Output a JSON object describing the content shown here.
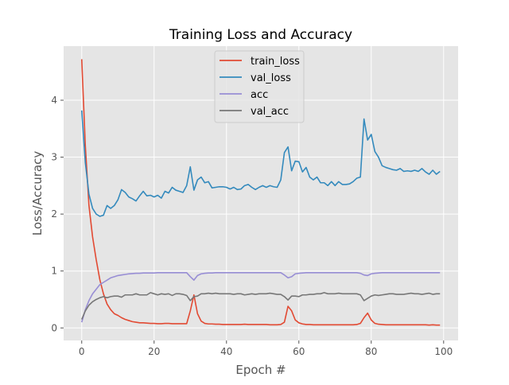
{
  "chart_data": {
    "type": "line",
    "title": "Training Loss and Accuracy",
    "xlabel": "Epoch #",
    "ylabel": "Loss/Accuracy",
    "xlim": [
      -5,
      104
    ],
    "ylim": [
      -0.22,
      4.95
    ],
    "xticks": [
      0,
      20,
      40,
      60,
      80,
      100
    ],
    "yticks": [
      0,
      1,
      2,
      3,
      4
    ],
    "grid": true,
    "legend_position": "top-center",
    "style": "ggplot",
    "series": [
      {
        "name": "train_loss",
        "color": "#E24A33",
        "x": [
          0,
          1,
          2,
          3,
          4,
          5,
          6,
          7,
          8,
          9,
          10,
          11,
          12,
          13,
          14,
          15,
          16,
          17,
          18,
          19,
          20,
          21,
          22,
          23,
          24,
          25,
          26,
          27,
          28,
          29,
          30,
          31,
          32,
          33,
          34,
          35,
          36,
          37,
          38,
          39,
          40,
          41,
          42,
          43,
          44,
          45,
          46,
          47,
          48,
          49,
          50,
          51,
          52,
          53,
          54,
          55,
          56,
          57,
          58,
          59,
          60,
          61,
          62,
          63,
          64,
          65,
          66,
          67,
          68,
          69,
          70,
          71,
          72,
          73,
          74,
          75,
          76,
          77,
          78,
          79,
          80,
          81,
          82,
          83,
          84,
          85,
          86,
          87,
          88,
          89,
          90,
          91,
          92,
          93,
          94,
          95,
          96,
          97,
          98,
          99
        ],
        "values": [
          4.72,
          3.2,
          2.15,
          1.6,
          1.2,
          0.85,
          0.6,
          0.42,
          0.32,
          0.25,
          0.22,
          0.18,
          0.15,
          0.13,
          0.11,
          0.1,
          0.09,
          0.09,
          0.085,
          0.08,
          0.08,
          0.075,
          0.075,
          0.08,
          0.08,
          0.075,
          0.075,
          0.075,
          0.075,
          0.075,
          0.3,
          0.58,
          0.25,
          0.12,
          0.08,
          0.07,
          0.07,
          0.065,
          0.065,
          0.06,
          0.06,
          0.06,
          0.06,
          0.06,
          0.06,
          0.065,
          0.06,
          0.06,
          0.06,
          0.06,
          0.06,
          0.06,
          0.055,
          0.055,
          0.055,
          0.06,
          0.1,
          0.38,
          0.3,
          0.14,
          0.09,
          0.07,
          0.06,
          0.06,
          0.055,
          0.055,
          0.055,
          0.055,
          0.055,
          0.055,
          0.055,
          0.055,
          0.055,
          0.055,
          0.055,
          0.055,
          0.06,
          0.08,
          0.18,
          0.26,
          0.14,
          0.08,
          0.065,
          0.06,
          0.055,
          0.055,
          0.055,
          0.055,
          0.055,
          0.055,
          0.055,
          0.055,
          0.055,
          0.055,
          0.055,
          0.055,
          0.05,
          0.055,
          0.05,
          0.05
        ]
      },
      {
        "name": "val_loss",
        "color": "#348ABD",
        "x": [
          0,
          1,
          2,
          3,
          4,
          5,
          6,
          7,
          8,
          9,
          10,
          11,
          12,
          13,
          14,
          15,
          16,
          17,
          18,
          19,
          20,
          21,
          22,
          23,
          24,
          25,
          26,
          27,
          28,
          29,
          30,
          31,
          32,
          33,
          34,
          35,
          36,
          37,
          38,
          39,
          40,
          41,
          42,
          43,
          44,
          45,
          46,
          47,
          48,
          49,
          50,
          51,
          52,
          53,
          54,
          55,
          56,
          57,
          58,
          59,
          60,
          61,
          62,
          63,
          64,
          65,
          66,
          67,
          68,
          69,
          70,
          71,
          72,
          73,
          74,
          75,
          76,
          77,
          78,
          79,
          80,
          81,
          82,
          83,
          84,
          85,
          86,
          87,
          88,
          89,
          90,
          91,
          92,
          93,
          94,
          95,
          96,
          97,
          98,
          99
        ],
        "values": [
          3.82,
          2.9,
          2.35,
          2.1,
          2.0,
          1.96,
          1.98,
          2.15,
          2.1,
          2.15,
          2.25,
          2.43,
          2.38,
          2.3,
          2.27,
          2.23,
          2.32,
          2.4,
          2.32,
          2.33,
          2.3,
          2.33,
          2.28,
          2.4,
          2.37,
          2.47,
          2.42,
          2.4,
          2.38,
          2.5,
          2.83,
          2.42,
          2.6,
          2.65,
          2.55,
          2.57,
          2.46,
          2.47,
          2.48,
          2.48,
          2.47,
          2.44,
          2.47,
          2.43,
          2.44,
          2.5,
          2.52,
          2.47,
          2.43,
          2.47,
          2.5,
          2.47,
          2.5,
          2.48,
          2.47,
          2.6,
          3.08,
          3.18,
          2.76,
          2.93,
          2.92,
          2.74,
          2.82,
          2.65,
          2.6,
          2.65,
          2.55,
          2.55,
          2.5,
          2.57,
          2.5,
          2.57,
          2.52,
          2.52,
          2.53,
          2.57,
          2.63,
          2.65,
          3.67,
          3.3,
          3.4,
          3.1,
          3.0,
          2.85,
          2.82,
          2.8,
          2.78,
          2.77,
          2.8,
          2.75,
          2.76,
          2.75,
          2.77,
          2.75,
          2.8,
          2.74,
          2.7,
          2.77,
          2.7,
          2.75
        ]
      },
      {
        "name": "acc",
        "color": "#988ED5",
        "x": [
          0,
          1,
          2,
          3,
          4,
          5,
          6,
          7,
          8,
          9,
          10,
          11,
          12,
          13,
          14,
          15,
          16,
          17,
          18,
          19,
          20,
          21,
          22,
          23,
          24,
          25,
          26,
          27,
          28,
          29,
          30,
          31,
          32,
          33,
          34,
          35,
          36,
          37,
          38,
          39,
          40,
          41,
          42,
          43,
          44,
          45,
          46,
          47,
          48,
          49,
          50,
          51,
          52,
          53,
          54,
          55,
          56,
          57,
          58,
          59,
          60,
          61,
          62,
          63,
          64,
          65,
          66,
          67,
          68,
          69,
          70,
          71,
          72,
          73,
          74,
          75,
          76,
          77,
          78,
          79,
          80,
          81,
          82,
          83,
          84,
          85,
          86,
          87,
          88,
          89,
          90,
          91,
          92,
          93,
          94,
          95,
          96,
          97,
          98,
          99
        ],
        "values": [
          0.1,
          0.32,
          0.48,
          0.6,
          0.68,
          0.76,
          0.8,
          0.84,
          0.88,
          0.9,
          0.92,
          0.93,
          0.94,
          0.95,
          0.955,
          0.96,
          0.96,
          0.965,
          0.965,
          0.965,
          0.965,
          0.97,
          0.97,
          0.97,
          0.97,
          0.97,
          0.97,
          0.97,
          0.97,
          0.97,
          0.9,
          0.84,
          0.92,
          0.95,
          0.96,
          0.965,
          0.965,
          0.97,
          0.97,
          0.97,
          0.97,
          0.97,
          0.97,
          0.97,
          0.97,
          0.97,
          0.97,
          0.97,
          0.97,
          0.97,
          0.97,
          0.97,
          0.97,
          0.97,
          0.97,
          0.97,
          0.93,
          0.88,
          0.9,
          0.95,
          0.96,
          0.965,
          0.97,
          0.97,
          0.97,
          0.97,
          0.97,
          0.97,
          0.97,
          0.97,
          0.97,
          0.97,
          0.97,
          0.97,
          0.97,
          0.97,
          0.97,
          0.96,
          0.93,
          0.92,
          0.95,
          0.96,
          0.965,
          0.97,
          0.97,
          0.97,
          0.97,
          0.97,
          0.97,
          0.97,
          0.97,
          0.97,
          0.97,
          0.97,
          0.97,
          0.97,
          0.97,
          0.97,
          0.97,
          0.97
        ]
      },
      {
        "name": "val_acc",
        "color": "#777777",
        "x": [
          0,
          1,
          2,
          3,
          4,
          5,
          6,
          7,
          8,
          9,
          10,
          11,
          12,
          13,
          14,
          15,
          16,
          17,
          18,
          19,
          20,
          21,
          22,
          23,
          24,
          25,
          26,
          27,
          28,
          29,
          30,
          31,
          32,
          33,
          34,
          35,
          36,
          37,
          38,
          39,
          40,
          41,
          42,
          43,
          44,
          45,
          46,
          47,
          48,
          49,
          50,
          51,
          52,
          53,
          54,
          55,
          56,
          57,
          58,
          59,
          60,
          61,
          62,
          63,
          64,
          65,
          66,
          67,
          68,
          69,
          70,
          71,
          72,
          73,
          74,
          75,
          76,
          77,
          78,
          79,
          80,
          81,
          82,
          83,
          84,
          85,
          86,
          87,
          88,
          89,
          90,
          91,
          92,
          93,
          94,
          95,
          96,
          97,
          98,
          99
        ],
        "values": [
          0.15,
          0.3,
          0.4,
          0.46,
          0.5,
          0.53,
          0.55,
          0.53,
          0.55,
          0.56,
          0.56,
          0.54,
          0.58,
          0.58,
          0.58,
          0.6,
          0.58,
          0.58,
          0.58,
          0.62,
          0.6,
          0.58,
          0.6,
          0.59,
          0.6,
          0.57,
          0.6,
          0.6,
          0.59,
          0.57,
          0.48,
          0.55,
          0.56,
          0.6,
          0.6,
          0.61,
          0.6,
          0.61,
          0.6,
          0.6,
          0.6,
          0.6,
          0.59,
          0.6,
          0.6,
          0.58,
          0.59,
          0.6,
          0.59,
          0.6,
          0.6,
          0.6,
          0.61,
          0.6,
          0.59,
          0.59,
          0.55,
          0.49,
          0.56,
          0.56,
          0.55,
          0.58,
          0.58,
          0.59,
          0.59,
          0.6,
          0.6,
          0.62,
          0.6,
          0.6,
          0.6,
          0.61,
          0.6,
          0.6,
          0.6,
          0.6,
          0.6,
          0.58,
          0.48,
          0.52,
          0.56,
          0.58,
          0.57,
          0.58,
          0.59,
          0.6,
          0.6,
          0.59,
          0.59,
          0.59,
          0.6,
          0.61,
          0.6,
          0.6,
          0.59,
          0.6,
          0.61,
          0.59,
          0.6,
          0.6
        ]
      }
    ]
  }
}
